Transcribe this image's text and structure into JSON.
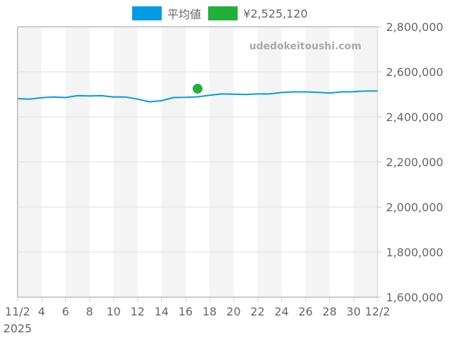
{
  "legend": {
    "items": [
      {
        "label": "平均値",
        "color": "#039be5"
      },
      {
        "label": "¥2,525,120",
        "color": "#22b03c"
      }
    ]
  },
  "watermark": "udedokeitoushi.com",
  "chart_data": {
    "type": "line",
    "title": "",
    "xlabel": "",
    "ylabel": "",
    "x_tick_labels": [
      "11/2",
      "4",
      "6",
      "8",
      "10",
      "12",
      "14",
      "16",
      "18",
      "20",
      "22",
      "24",
      "26",
      "28",
      "30",
      "12/2"
    ],
    "x_year_label": "2025",
    "y_tick_labels": [
      "1,600,000",
      "1,800,000",
      "2,000,000",
      "2,200,000",
      "2,400,000",
      "2,600,000",
      "2,800,000"
    ],
    "ylim": [
      1600000,
      2800000
    ],
    "grid": true,
    "legend_position": "top",
    "series": [
      {
        "name": "平均値",
        "color": "#039be5",
        "x_days": [
          0,
          1,
          2,
          3,
          4,
          5,
          6,
          7,
          8,
          9,
          10,
          11,
          12,
          13,
          14,
          15,
          16,
          17,
          18,
          19,
          20,
          21,
          22,
          23,
          24,
          25,
          26,
          27,
          28,
          29,
          30
        ],
        "values": [
          2481000,
          2479000,
          2485000,
          2488000,
          2486000,
          2494000,
          2493000,
          2494000,
          2488000,
          2488000,
          2479000,
          2467000,
          2472000,
          2486000,
          2487000,
          2489000,
          2496000,
          2502000,
          2501000,
          2499000,
          2502000,
          2502000,
          2508000,
          2511000,
          2511000,
          2509000,
          2506000,
          2511000,
          2512000,
          2515000,
          2515000
        ]
      },
      {
        "name": "¥2,525,120",
        "color": "#22b03c",
        "type": "point",
        "x_days": [
          15
        ],
        "values": [
          2525120
        ]
      }
    ]
  }
}
